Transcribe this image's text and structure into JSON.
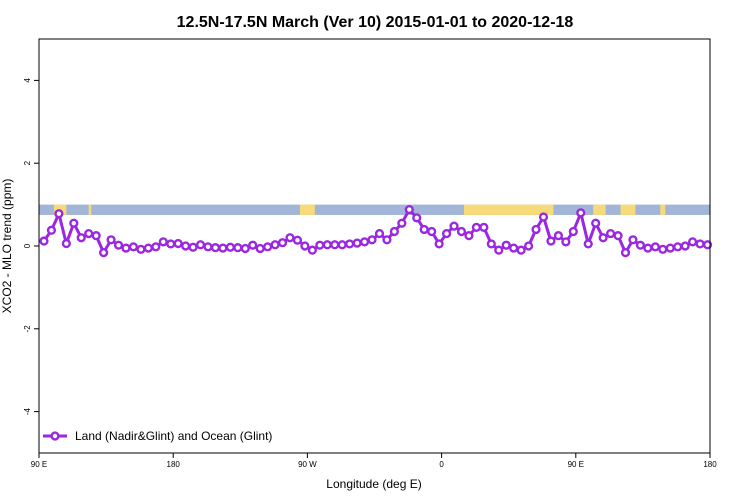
{
  "chart_data": {
    "type": "line",
    "title": "12.5N-17.5N March (Ver 10)   2015-01-01 to 2020-12-18",
    "xlabel": "Longitude (deg E)",
    "ylabel": "XCO2 - MLO trend (ppm)",
    "xlim": [
      -90,
      180
    ],
    "ylim": [
      -5,
      5
    ],
    "x_ticks": [
      {
        "value": -90,
        "label": "90 E"
      },
      {
        "value": -36,
        "label": "180"
      },
      {
        "value": 18,
        "label": "90 W"
      },
      {
        "value": 72,
        "label": "0"
      },
      {
        "value": 126,
        "label": "90 E"
      },
      {
        "value": 180,
        "label": "180"
      }
    ],
    "y_ticks": [
      {
        "value": -4,
        "label": "-4"
      },
      {
        "value": -2,
        "label": "-2"
      },
      {
        "value": 0,
        "label": "0"
      },
      {
        "value": 2,
        "label": "2"
      },
      {
        "value": 4,
        "label": "4"
      }
    ],
    "land_ocean_band": {
      "y_range": [
        0.75,
        1.0
      ],
      "ocean_color": "#a2b5d8",
      "land_color": "#f7da79",
      "land_segments": [
        [
          -84,
          -79
        ],
        [
          -70,
          -69
        ],
        [
          15,
          21
        ],
        [
          81,
          117
        ],
        [
          133,
          138
        ],
        [
          144,
          150
        ],
        [
          160,
          162
        ]
      ]
    },
    "series": [
      {
        "name": "Land (Nadir&Glint) and Ocean (Glint)",
        "color": "#9b27e0",
        "x": [
          -88,
          -85,
          -82,
          -79,
          -76,
          -73,
          -70,
          -67,
          -64,
          -61,
          -58,
          -55,
          -52,
          -49,
          -46,
          -43,
          -40,
          -37,
          -34,
          -31,
          -28,
          -25,
          -22,
          -19,
          -16,
          -13,
          -10,
          -7,
          -4,
          -1,
          2,
          5,
          8,
          11,
          14,
          17,
          20,
          23,
          26,
          29,
          32,
          35,
          38,
          41,
          44,
          47,
          50,
          53,
          56,
          59,
          62,
          65,
          68,
          71,
          74,
          77,
          80,
          83,
          86,
          89,
          92,
          95,
          98,
          101,
          104,
          107,
          110,
          113,
          116,
          119,
          122,
          125,
          128,
          131,
          134,
          137,
          140,
          143,
          146,
          149,
          152,
          155,
          158,
          161,
          164,
          167,
          170,
          173,
          176,
          179
        ],
        "y": [
          0.12,
          0.38,
          0.78,
          0.06,
          0.55,
          0.2,
          0.3,
          0.25,
          -0.16,
          0.15,
          0.02,
          -0.05,
          -0.02,
          -0.08,
          -0.05,
          -0.02,
          0.1,
          0.05,
          0.06,
          0.0,
          -0.03,
          0.03,
          -0.02,
          -0.04,
          -0.05,
          -0.03,
          -0.04,
          -0.06,
          0.02,
          -0.06,
          -0.02,
          0.03,
          0.08,
          0.2,
          0.14,
          0.0,
          -0.1,
          0.02,
          0.03,
          0.03,
          0.03,
          0.05,
          0.07,
          0.1,
          0.15,
          0.3,
          0.15,
          0.35,
          0.55,
          0.88,
          0.68,
          0.4,
          0.35,
          0.05,
          0.3,
          0.48,
          0.35,
          0.25,
          0.45,
          0.45,
          0.05,
          -0.1,
          0.02,
          -0.05,
          -0.1,
          0.0,
          0.4,
          0.7,
          0.12,
          0.25,
          0.1,
          0.35,
          0.8,
          0.05,
          0.55,
          0.2,
          0.3,
          0.25,
          -0.16,
          0.15,
          0.02,
          -0.05,
          -0.02,
          -0.08,
          -0.05,
          -0.02,
          0.0,
          0.1,
          0.05,
          0.03
        ]
      }
    ],
    "legend": {
      "position": "bottom-left",
      "label": "Land (Nadir&Glint) and Ocean (Glint)"
    },
    "grid": false
  }
}
